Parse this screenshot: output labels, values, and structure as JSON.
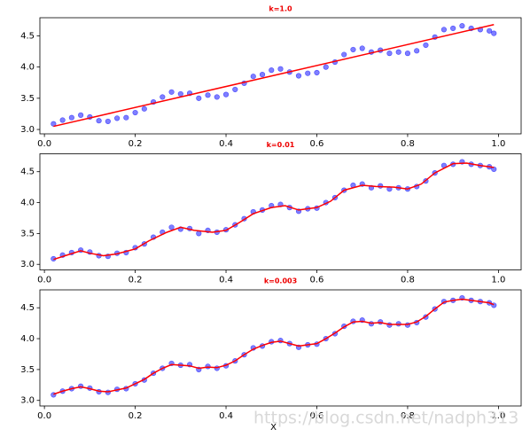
{
  "chart_data": [
    {
      "type": "scatter",
      "title": "k=1.0",
      "xlim": [
        -0.01,
        1.05
      ],
      "ylim": [
        2.93,
        4.79
      ],
      "xticks": [
        {
          "value": 0,
          "label": "0.0"
        },
        {
          "value": 0.2,
          "label": "0.2"
        },
        {
          "value": 0.4,
          "label": "0.4"
        },
        {
          "value": 0.6,
          "label": "0.6"
        },
        {
          "value": 0.8,
          "label": "0.8"
        },
        {
          "value": 1,
          "label": "1.0"
        }
      ],
      "yticks": [
        {
          "value": 3,
          "label": "3.0"
        },
        {
          "value": 3.5,
          "label": "3.5"
        },
        {
          "value": 4,
          "label": "4.0"
        },
        {
          "value": 4.5,
          "label": "4.5"
        }
      ],
      "series": [
        {
          "type": "scatter",
          "color": "#0000ff",
          "x": [
            0.02,
            0.04,
            0.06,
            0.08,
            0.1,
            0.12,
            0.14,
            0.16,
            0.18,
            0.2,
            0.22,
            0.24,
            0.26,
            0.28,
            0.3,
            0.32,
            0.34,
            0.36,
            0.38,
            0.4,
            0.42,
            0.44,
            0.46,
            0.48,
            0.5,
            0.52,
            0.54,
            0.56,
            0.58,
            0.6,
            0.62,
            0.64,
            0.66,
            0.68,
            0.7,
            0.72,
            0.74,
            0.76,
            0.78,
            0.8,
            0.82,
            0.84,
            0.86,
            0.88,
            0.9,
            0.92,
            0.94,
            0.96,
            0.98,
            0.99
          ],
          "values": [
            3.09,
            3.15,
            3.19,
            3.23,
            3.2,
            3.14,
            3.13,
            3.18,
            3.19,
            3.27,
            3.33,
            3.44,
            3.52,
            3.6,
            3.57,
            3.58,
            3.5,
            3.55,
            3.52,
            3.56,
            3.64,
            3.74,
            3.85,
            3.88,
            3.95,
            3.97,
            3.92,
            3.86,
            3.9,
            3.91,
            4.0,
            4.08,
            4.2,
            4.28,
            4.3,
            4.24,
            4.27,
            4.22,
            4.24,
            4.22,
            4.26,
            4.35,
            4.48,
            4.6,
            4.62,
            4.66,
            4.62,
            4.6,
            4.58,
            4.54
          ]
        },
        {
          "type": "line",
          "color": "#ff0000",
          "x": [
            0.02,
            0.99
          ],
          "values": [
            3.05,
            4.68
          ]
        }
      ]
    },
    {
      "type": "scatter",
      "title": "k=0.01",
      "xlim": [
        -0.01,
        1.05
      ],
      "ylim": [
        2.91,
        4.79
      ],
      "xticks": [
        {
          "value": 0,
          "label": "0.0"
        },
        {
          "value": 0.2,
          "label": "0.2"
        },
        {
          "value": 0.4,
          "label": "0.4"
        },
        {
          "value": 0.6,
          "label": "0.6"
        },
        {
          "value": 0.8,
          "label": "0.8"
        },
        {
          "value": 1,
          "label": "1.0"
        }
      ],
      "yticks": [
        {
          "value": 3,
          "label": "3.0"
        },
        {
          "value": 3.5,
          "label": "3.5"
        },
        {
          "value": 4,
          "label": "4.0"
        },
        {
          "value": 4.5,
          "label": "4.5"
        }
      ],
      "series": [
        {
          "type": "scatter",
          "color": "#0000ff",
          "x": [
            0.02,
            0.04,
            0.06,
            0.08,
            0.1,
            0.12,
            0.14,
            0.16,
            0.18,
            0.2,
            0.22,
            0.24,
            0.26,
            0.28,
            0.3,
            0.32,
            0.34,
            0.36,
            0.38,
            0.4,
            0.42,
            0.44,
            0.46,
            0.48,
            0.5,
            0.52,
            0.54,
            0.56,
            0.58,
            0.6,
            0.62,
            0.64,
            0.66,
            0.68,
            0.7,
            0.72,
            0.74,
            0.76,
            0.78,
            0.8,
            0.82,
            0.84,
            0.86,
            0.88,
            0.9,
            0.92,
            0.94,
            0.96,
            0.98,
            0.99
          ],
          "values": [
            3.09,
            3.15,
            3.19,
            3.23,
            3.2,
            3.14,
            3.13,
            3.18,
            3.19,
            3.27,
            3.33,
            3.44,
            3.52,
            3.6,
            3.57,
            3.58,
            3.5,
            3.55,
            3.52,
            3.56,
            3.64,
            3.74,
            3.85,
            3.88,
            3.95,
            3.97,
            3.92,
            3.86,
            3.9,
            3.91,
            4.0,
            4.08,
            4.2,
            4.28,
            4.3,
            4.24,
            4.27,
            4.22,
            4.24,
            4.22,
            4.26,
            4.35,
            4.48,
            4.6,
            4.62,
            4.66,
            4.62,
            4.6,
            4.58,
            4.54
          ]
        },
        {
          "type": "line",
          "color": "#ff0000",
          "x": [
            0.02,
            0.05,
            0.08,
            0.1,
            0.13,
            0.16,
            0.2,
            0.23,
            0.27,
            0.3,
            0.33,
            0.37,
            0.4,
            0.43,
            0.46,
            0.5,
            0.53,
            0.56,
            0.6,
            0.63,
            0.66,
            0.7,
            0.73,
            0.77,
            0.8,
            0.83,
            0.86,
            0.9,
            0.93,
            0.96,
            0.99
          ],
          "values": [
            3.08,
            3.15,
            3.22,
            3.18,
            3.14,
            3.17,
            3.25,
            3.38,
            3.52,
            3.6,
            3.55,
            3.52,
            3.55,
            3.68,
            3.82,
            3.92,
            3.95,
            3.88,
            3.92,
            4.02,
            4.2,
            4.28,
            4.26,
            4.25,
            4.22,
            4.3,
            4.48,
            4.63,
            4.64,
            4.6,
            4.57
          ]
        }
      ]
    },
    {
      "type": "scatter",
      "title": "k=0.003",
      "xlabel": "X",
      "xlim": [
        -0.01,
        1.05
      ],
      "ylim": [
        2.91,
        4.79
      ],
      "xticks": [
        {
          "value": 0,
          "label": "0.0"
        },
        {
          "value": 0.2,
          "label": "0.2"
        },
        {
          "value": 0.4,
          "label": "0.4"
        },
        {
          "value": 0.6,
          "label": "0.6"
        },
        {
          "value": 0.8,
          "label": "0.8"
        },
        {
          "value": 1,
          "label": "1.0"
        }
      ],
      "yticks": [
        {
          "value": 3,
          "label": "3.0"
        },
        {
          "value": 3.5,
          "label": "3.5"
        },
        {
          "value": 4,
          "label": "4.0"
        },
        {
          "value": 4.5,
          "label": "4.5"
        }
      ],
      "series": [
        {
          "type": "scatter",
          "color": "#0000ff",
          "x": [
            0.02,
            0.04,
            0.06,
            0.08,
            0.1,
            0.12,
            0.14,
            0.16,
            0.18,
            0.2,
            0.22,
            0.24,
            0.26,
            0.28,
            0.3,
            0.32,
            0.34,
            0.36,
            0.38,
            0.4,
            0.42,
            0.44,
            0.46,
            0.48,
            0.5,
            0.52,
            0.54,
            0.56,
            0.58,
            0.6,
            0.62,
            0.64,
            0.66,
            0.68,
            0.7,
            0.72,
            0.74,
            0.76,
            0.78,
            0.8,
            0.82,
            0.84,
            0.86,
            0.88,
            0.9,
            0.92,
            0.94,
            0.96,
            0.98,
            0.99
          ],
          "values": [
            3.09,
            3.15,
            3.19,
            3.23,
            3.2,
            3.14,
            3.13,
            3.18,
            3.19,
            3.27,
            3.33,
            3.44,
            3.52,
            3.6,
            3.57,
            3.58,
            3.5,
            3.55,
            3.52,
            3.56,
            3.64,
            3.74,
            3.85,
            3.88,
            3.95,
            3.97,
            3.92,
            3.86,
            3.9,
            3.91,
            4.0,
            4.08,
            4.2,
            4.28,
            4.3,
            4.24,
            4.27,
            4.22,
            4.24,
            4.22,
            4.26,
            4.35,
            4.48,
            4.6,
            4.62,
            4.66,
            4.62,
            4.6,
            4.58,
            4.54
          ]
        },
        {
          "type": "line",
          "color": "#ff0000",
          "x": [
            0.02,
            0.04,
            0.06,
            0.08,
            0.1,
            0.12,
            0.14,
            0.16,
            0.18,
            0.2,
            0.22,
            0.24,
            0.26,
            0.28,
            0.3,
            0.32,
            0.34,
            0.36,
            0.38,
            0.4,
            0.42,
            0.44,
            0.46,
            0.48,
            0.5,
            0.52,
            0.54,
            0.56,
            0.58,
            0.6,
            0.62,
            0.64,
            0.66,
            0.68,
            0.7,
            0.72,
            0.74,
            0.76,
            0.78,
            0.8,
            0.82,
            0.84,
            0.86,
            0.88,
            0.9,
            0.92,
            0.94,
            0.96,
            0.98,
            0.99
          ],
          "values": [
            3.1,
            3.15,
            3.19,
            3.22,
            3.19,
            3.15,
            3.14,
            3.17,
            3.2,
            3.27,
            3.34,
            3.44,
            3.52,
            3.58,
            3.57,
            3.56,
            3.52,
            3.54,
            3.53,
            3.57,
            3.64,
            3.74,
            3.83,
            3.89,
            3.94,
            3.96,
            3.92,
            3.88,
            3.9,
            3.92,
            4.0,
            4.09,
            4.19,
            4.27,
            4.28,
            4.25,
            4.26,
            4.23,
            4.23,
            4.23,
            4.27,
            4.36,
            4.48,
            4.59,
            4.62,
            4.64,
            4.62,
            4.6,
            4.58,
            4.55
          ]
        }
      ]
    }
  ],
  "watermark": "https://blog.csdn.net/nadph313"
}
